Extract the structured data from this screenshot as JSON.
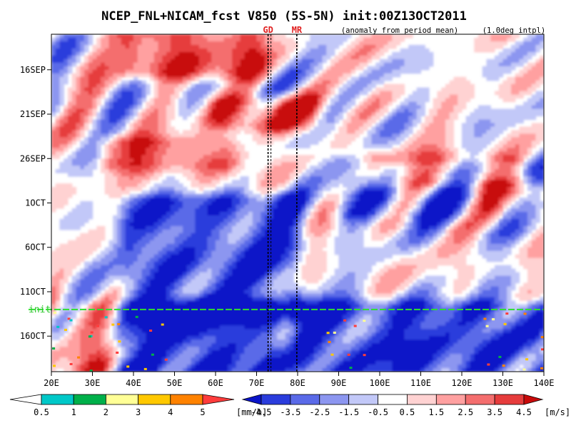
{
  "chart_data": {
    "type": "heatmap",
    "title": "NCEP_FNL+NICAM_fcst V850 (5S-5N) init:00Z13OCT2011",
    "subtitle_left": "(anomaly from period mean)",
    "subtitle_right": "(1.0deg intpl)",
    "x_ticks": [
      "20E",
      "30E",
      "40E",
      "50E",
      "60E",
      "70E",
      "80E",
      "90E",
      "100E",
      "110E",
      "120E",
      "130E",
      "140E"
    ],
    "x_range": [
      20,
      140
    ],
    "y_ticks": [
      {
        "label": "16SEP",
        "day": 4
      },
      {
        "label": "21SEP",
        "day": 9
      },
      {
        "label": "26SEP",
        "day": 14
      },
      {
        "label": "1OCT",
        "day": 19
      },
      {
        "label": "6OCT",
        "day": 24
      },
      {
        "label": "11OCT",
        "day": 29
      },
      {
        "label": "16OCT",
        "day": 34
      }
    ],
    "y_range_days": [
      0,
      38
    ],
    "y_origin_date": "12SEP2011",
    "init_line": {
      "label": "init",
      "day": 31
    },
    "reference_lines": [
      {
        "label": "GD",
        "lon": 72.8
      },
      {
        "label": "MR",
        "lon": 79.8
      }
    ],
    "rain_colorbar": {
      "units": "[mm/h]",
      "levels": [
        "0.5",
        "1",
        "2",
        "3",
        "4",
        "5"
      ],
      "colors": [
        "#ffffff",
        "#00c8c8",
        "#00b04a",
        "#ffff96",
        "#ffc800",
        "#ff8200",
        "#ff3c3c"
      ]
    },
    "wind_colorbar": {
      "units": "[m/s]",
      "levels": [
        "-4.5",
        "-3.5",
        "-2.5",
        "-1.5",
        "-0.5",
        "0.5",
        "1.5",
        "2.5",
        "3.5",
        "4.5"
      ],
      "colors": [
        "#0a14c8",
        "#2a3cdc",
        "#5a6ae8",
        "#8c96f0",
        "#c2c8f8",
        "#ffffff",
        "#ffd2d2",
        "#ffa0a0",
        "#f46e6e",
        "#e63c3c",
        "#c80a0a"
      ]
    },
    "anomaly_features": [
      {
        "name": "early-season westerly anomaly",
        "lon": [
          40,
          68
        ],
        "day": [
          0,
          4
        ],
        "value": 3.8
      },
      {
        "name": "westerly burst near 75E",
        "lon": [
          62,
          82
        ],
        "day": [
          8,
          10
        ],
        "value": 3.5
      },
      {
        "name": "westerly band 40E-60E",
        "lon": [
          35,
          62
        ],
        "day": [
          12.5,
          14.5
        ],
        "value": 3.2
      },
      {
        "name": "west Pacific westerly",
        "lon": [
          100,
          132
        ],
        "day": [
          14.5,
          16.5
        ],
        "value": 4.0
      },
      {
        "name": "far east westerly",
        "lon": [
          128,
          140
        ],
        "day": [
          18,
          20
        ],
        "value": 3.6
      },
      {
        "name": "propagating easterly band",
        "lon": [
          40,
          78
        ],
        "day": [
          19,
          31
        ],
        "value": -3.5
      },
      {
        "name": "east Indian Ocean easterly",
        "lon": [
          92,
          140
        ],
        "day": [
          15,
          20
        ],
        "value": -3.0
      },
      {
        "name": "forecast easterly west",
        "lon": [
          38,
          72
        ],
        "day": [
          31,
          38
        ],
        "value": -4.5
      },
      {
        "name": "forecast easterly east",
        "lon": [
          82,
          138
        ],
        "day": [
          31,
          38
        ],
        "value": -4.0
      },
      {
        "name": "forecast westerly pocket",
        "lon": [
          20,
          38
        ],
        "day": [
          31,
          38
        ],
        "value": 2.0
      }
    ]
  }
}
